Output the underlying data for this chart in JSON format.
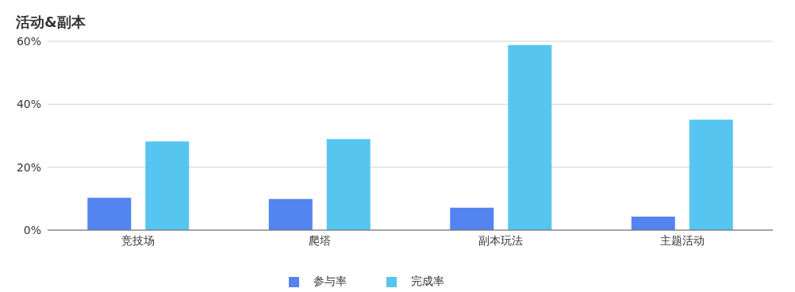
{
  "chart_data": {
    "type": "bar",
    "title": "活动&副本",
    "categories": [
      "竞技场",
      "爬塔",
      "副本玩法",
      "主题活动"
    ],
    "series": [
      {
        "name": "参与率",
        "color": "#5384f0",
        "values": [
          10.3,
          9.9,
          7.1,
          4.3
        ]
      },
      {
        "name": "完成率",
        "color": "#56c6f0",
        "values": [
          28.2,
          28.9,
          58.8,
          35.1
        ]
      }
    ],
    "ylim": [
      0,
      60
    ],
    "yticks": [
      {
        "value": 0,
        "label": "0%"
      },
      {
        "value": 20,
        "label": "20%"
      },
      {
        "value": 40,
        "label": "40%"
      },
      {
        "value": 60,
        "label": "60%"
      }
    ],
    "grid": "y",
    "legend": "bottom"
  }
}
